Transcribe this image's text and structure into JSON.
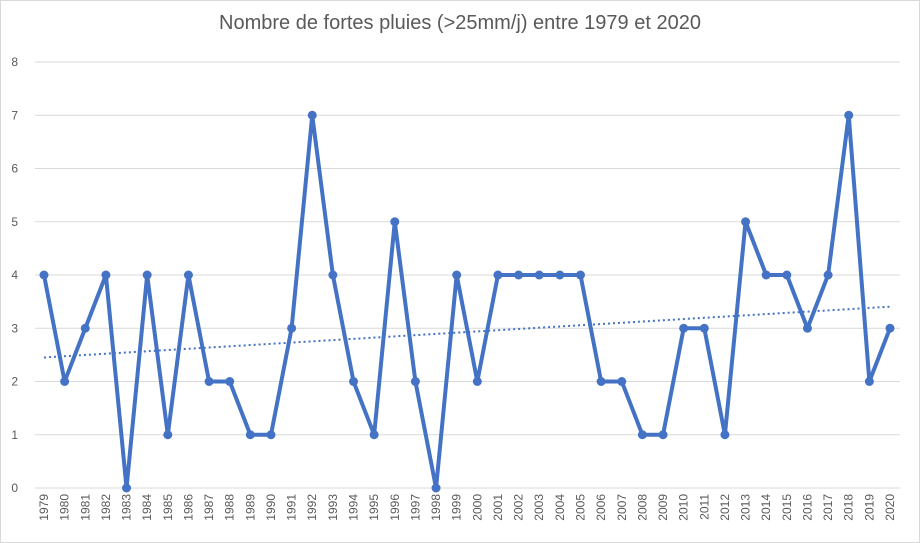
{
  "chart_data": {
    "type": "line",
    "title": "Nombre de fortes pluies (>25mm/j) entre 1979 et 2020",
    "xlabel": "",
    "ylabel": "",
    "ylim": [
      0,
      8
    ],
    "yticks": [
      "0",
      "1",
      "2",
      "3",
      "4",
      "5",
      "6",
      "7",
      "8"
    ],
    "grid": true,
    "legend": "none",
    "categories": [
      "1979",
      "1980",
      "1981",
      "1982",
      "1983",
      "1984",
      "1985",
      "1986",
      "1987",
      "1988",
      "1989",
      "1990",
      "1991",
      "1992",
      "1993",
      "1994",
      "1995",
      "1996",
      "1997",
      "1998",
      "1999",
      "2000",
      "2001",
      "2002",
      "2003",
      "2004",
      "2005",
      "2006",
      "2007",
      "2008",
      "2009",
      "2010",
      "2011",
      "2012",
      "2013",
      "2014",
      "2015",
      "2016",
      "2017",
      "2018",
      "2019",
      "2020"
    ],
    "series": [
      {
        "values": [
          4,
          2,
          3,
          4,
          0,
          4,
          1,
          4,
          2,
          2,
          1,
          1,
          3,
          7,
          4,
          2,
          1,
          5,
          2,
          0,
          4,
          2,
          4,
          4,
          4,
          4,
          4,
          2,
          2,
          1,
          1,
          3,
          3,
          1,
          5,
          4,
          4,
          3,
          4,
          7,
          2,
          3
        ],
        "color": "#4472c4"
      }
    ],
    "trendline": {
      "type": "linear",
      "style": "dotted",
      "color": "#4472c4"
    }
  }
}
